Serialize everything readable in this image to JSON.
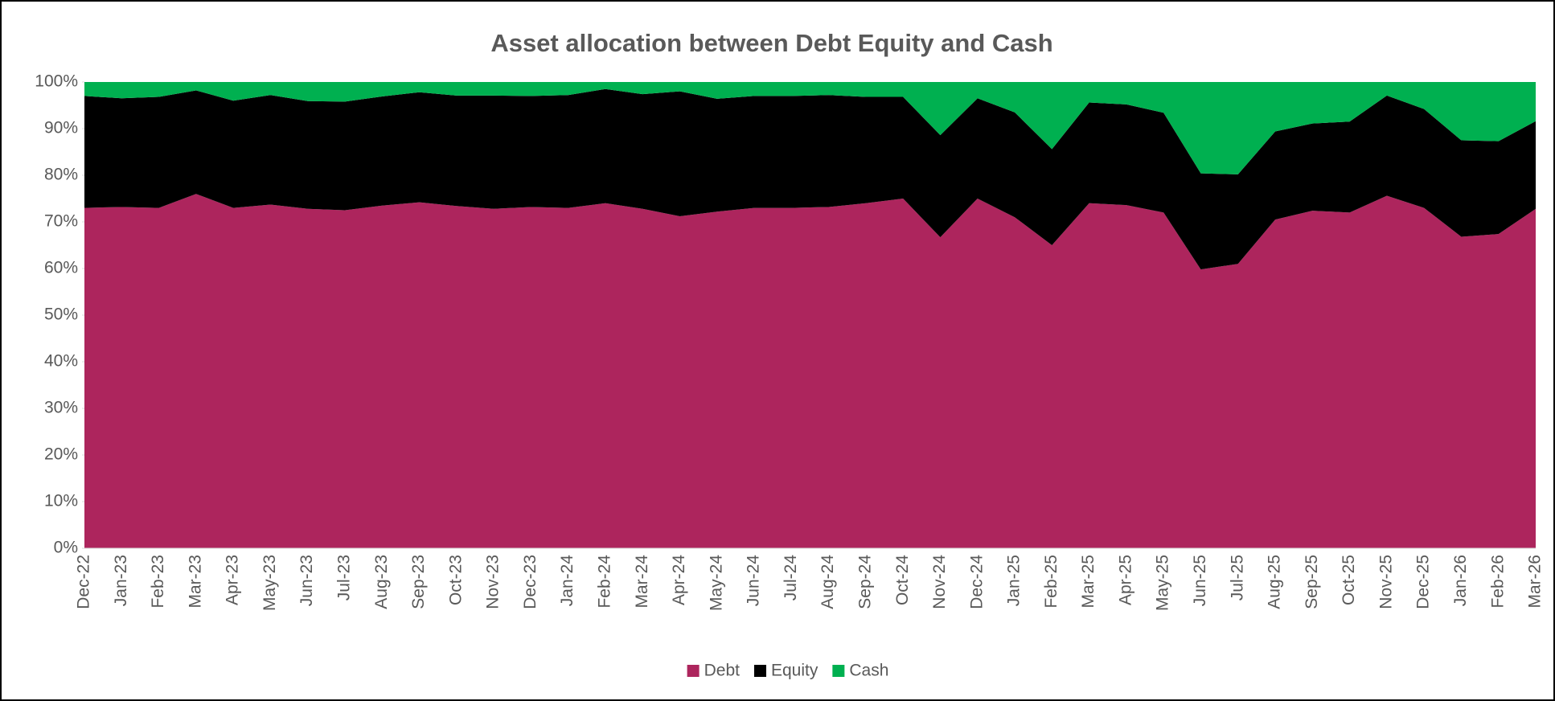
{
  "chart_data": {
    "type": "stacked_area",
    "title": "Asset allocation between Debt Equity and Cash",
    "categories": [
      "Dec-22",
      "Jan-23",
      "Feb-23",
      "Mar-23",
      "Apr-23",
      "May-23",
      "Jun-23",
      "Jul-23",
      "Aug-23",
      "Sep-23",
      "Oct-23",
      "Nov-23",
      "Dec-23",
      "Jan-24",
      "Feb-24",
      "Mar-24",
      "Apr-24",
      "May-24",
      "Jun-24",
      "Jul-24",
      "Aug-24",
      "Sep-24",
      "Oct-24",
      "Nov-24",
      "Dec-24",
      "Jan-25",
      "Feb-25",
      "Mar-25",
      "Apr-25",
      "May-25",
      "Jun-25",
      "Jul-25",
      "Aug-25",
      "Sep-25",
      "Oct-25",
      "Nov-25",
      "Dec-25",
      "Jan-26",
      "Feb-26",
      "Mar-26"
    ],
    "series": [
      {
        "name": "Debt",
        "color": "#ad255d",
        "values": [
          73,
          73.2,
          73,
          76,
          73,
          73.7,
          72.8,
          72.5,
          73.5,
          74.2,
          73.4,
          72.8,
          73.2,
          73,
          74,
          72.8,
          71.2,
          72.2,
          73,
          73,
          73.2,
          74,
          75,
          66.7,
          75,
          71,
          65,
          74,
          73.6,
          72,
          59.8,
          61,
          70.5,
          72.4,
          72,
          75.6,
          73,
          66.8,
          67.4,
          72.8
        ]
      },
      {
        "name": "Equity",
        "color": "#000000",
        "values": [
          24,
          23.3,
          23.8,
          22.2,
          23,
          23.5,
          23.1,
          23.3,
          23.4,
          23.6,
          23.7,
          24.3,
          23.8,
          24.2,
          24.5,
          24.6,
          26.8,
          24.2,
          24,
          24,
          24,
          22.8,
          21.8,
          21.9,
          21.5,
          22.5,
          20.6,
          21.6,
          21.6,
          21.4,
          20.6,
          19.2,
          18.9,
          18.7,
          19.5,
          21.5,
          21.2,
          20.7,
          19.9,
          18.8
        ]
      },
      {
        "name": "Cash",
        "color": "#00b050",
        "values": [
          3,
          3.5,
          3.2,
          1.8,
          4,
          2.8,
          4.1,
          4.2,
          3.1,
          2.2,
          2.9,
          2.9,
          3,
          2.8,
          1.5,
          2.6,
          2,
          3.6,
          3,
          3,
          2.8,
          3.2,
          3.2,
          11.4,
          3.5,
          6.5,
          14.4,
          4.4,
          4.8,
          6.6,
          19.6,
          19.8,
          10.6,
          8.9,
          8.5,
          2.9,
          5.8,
          12.5,
          12.7,
          8.4
        ]
      }
    ],
    "ylim": [
      0,
      100
    ],
    "yticks": [
      {
        "value": 0,
        "label": "0%"
      },
      {
        "value": 10,
        "label": "10%"
      },
      {
        "value": 20,
        "label": "20%"
      },
      {
        "value": 30,
        "label": "30%"
      },
      {
        "value": 40,
        "label": "40%"
      },
      {
        "value": 50,
        "label": "50%"
      },
      {
        "value": 60,
        "label": "60%"
      },
      {
        "value": 70,
        "label": "70%"
      },
      {
        "value": 80,
        "label": "80%"
      },
      {
        "value": 90,
        "label": "90%"
      },
      {
        "value": 100,
        "label": "100%"
      }
    ],
    "legend": "bottom"
  }
}
